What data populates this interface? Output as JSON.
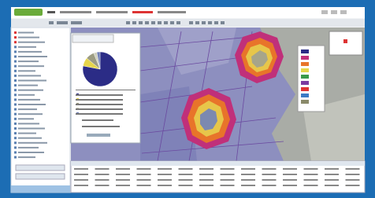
{
  "chart_data": {
    "type": "pie",
    "values": [
      78,
      8,
      8,
      3,
      3
    ],
    "colors": [
      "#2b2c86",
      "#e6d64c",
      "#9c9c82",
      "#cfd0bd",
      "#6f7fb8"
    ]
  }
}
